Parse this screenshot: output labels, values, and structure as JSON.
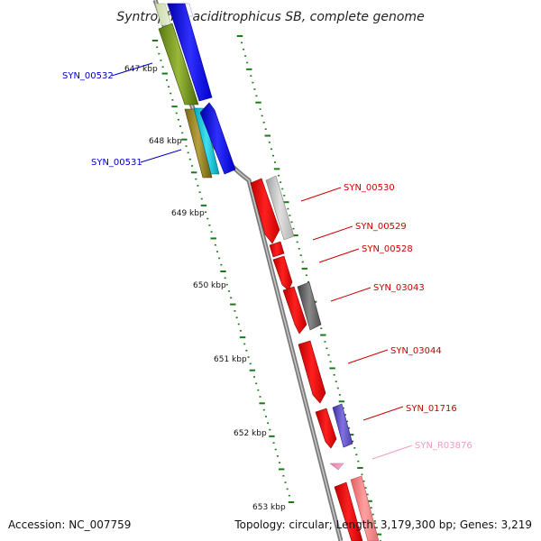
{
  "title": "Syntrophus aciditrophicus SB, complete genome",
  "footer": {
    "accession": "Accession: NC_007759",
    "summary": "Topology: circular; Length: 3,179,300 bp; Genes: 3,219"
  },
  "colors": {
    "backbone": "#888888",
    "tick": "#1a7a1a",
    "label_blue": "#0000cc",
    "label_red": "#cc0000",
    "label_pink": "#f09ac0"
  },
  "ticks": [
    {
      "label": "647 kbp"
    },
    {
      "label": "648 kbp"
    },
    {
      "label": "649 kbp"
    },
    {
      "label": "650 kbp"
    },
    {
      "label": "651 kbp"
    },
    {
      "label": "652 kbp"
    },
    {
      "label": "653 kbp"
    }
  ],
  "gene_labels": [
    {
      "name": "SYN_00532",
      "color": "blue"
    },
    {
      "name": "SYN_00531",
      "color": "blue"
    },
    {
      "name": "SYN_00530",
      "color": "red"
    },
    {
      "name": "SYN_00529",
      "color": "red"
    },
    {
      "name": "SYN_00528",
      "color": "red"
    },
    {
      "name": "SYN_03043",
      "color": "red"
    },
    {
      "name": "SYN_03044",
      "color": "red"
    },
    {
      "name": "SYN_01716",
      "color": "red"
    },
    {
      "name": "SYN_R03876",
      "color": "pink"
    }
  ]
}
